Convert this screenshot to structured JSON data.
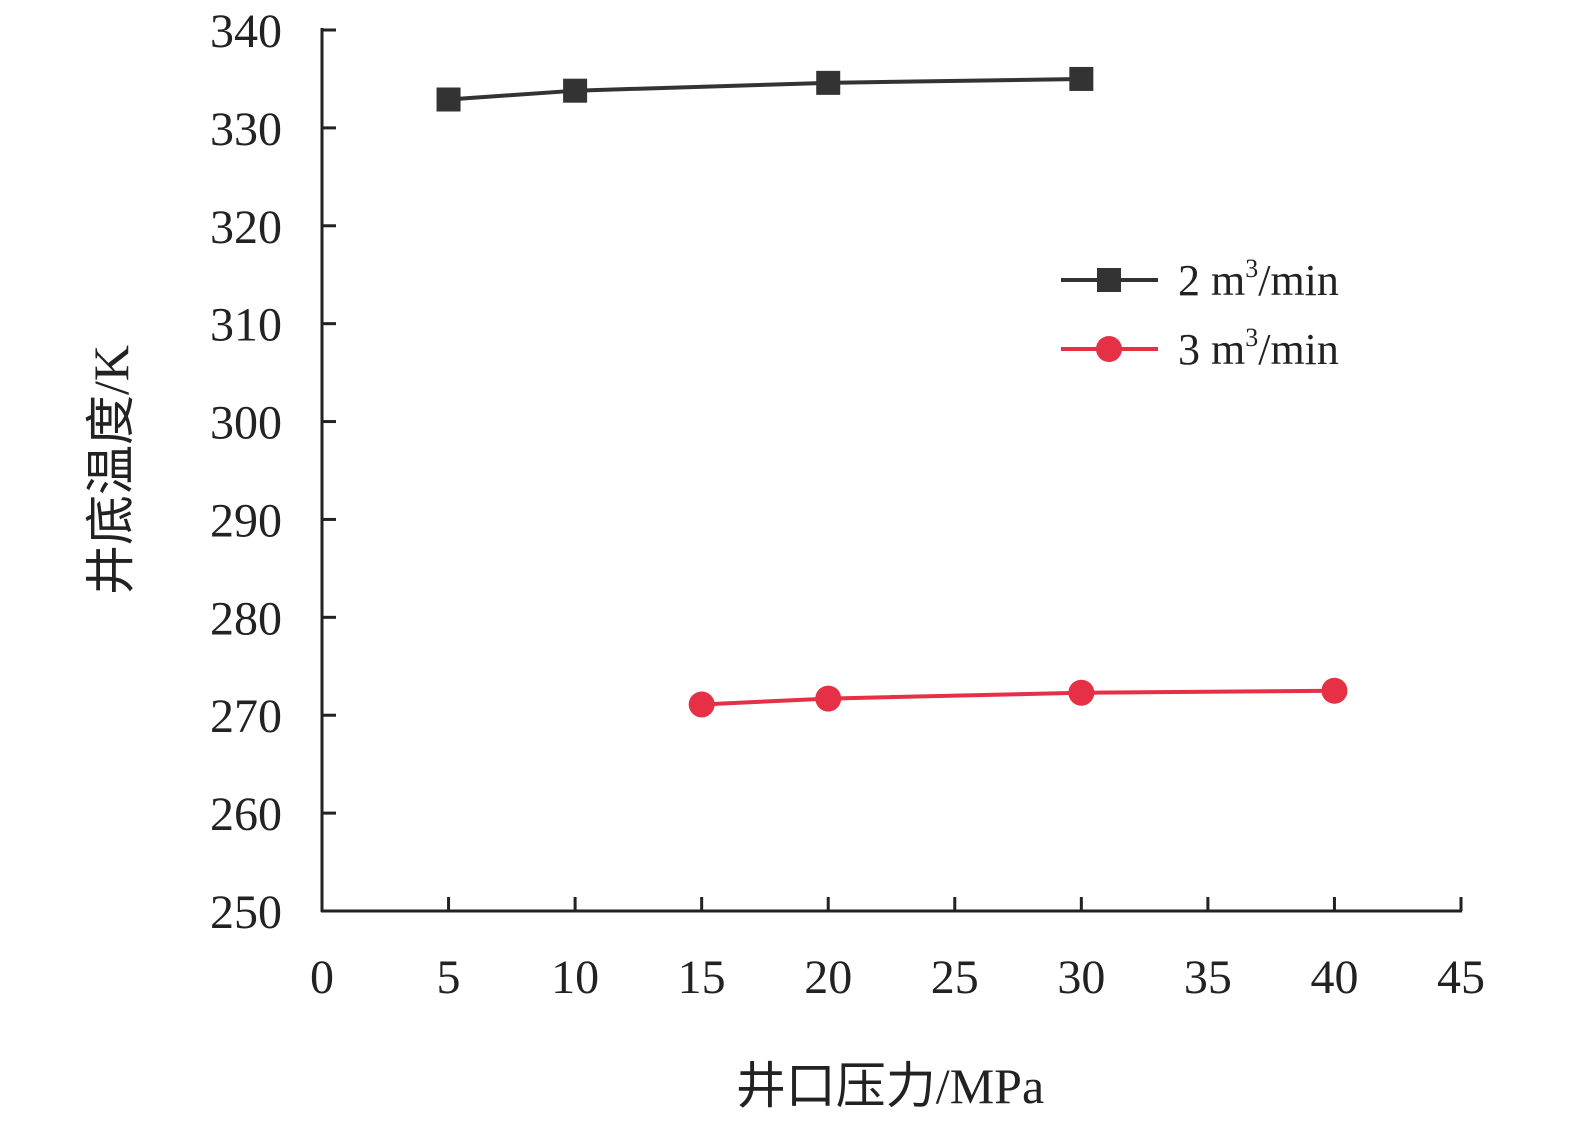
{
  "chart_data": {
    "type": "line",
    "xlabel": "井口压力/MPa",
    "ylabel": "井底温度/K",
    "xlim": [
      0,
      45
    ],
    "ylim": [
      250,
      340
    ],
    "xticks": [
      0,
      5,
      10,
      15,
      20,
      25,
      30,
      35,
      40,
      45
    ],
    "yticks": [
      250,
      260,
      270,
      280,
      290,
      300,
      310,
      320,
      330,
      340
    ],
    "grid": false,
    "legend_position": "right",
    "series": [
      {
        "name_prefix": "2 m",
        "name_sup": "3",
        "name_suffix": "/min",
        "color": "#333333",
        "marker": "square",
        "x": [
          5,
          10,
          20,
          30
        ],
        "y": [
          332.9,
          333.8,
          334.6,
          335.0
        ]
      },
      {
        "name_prefix": "3 m",
        "name_sup": "3",
        "name_suffix": "/min",
        "color": "#e53045",
        "marker": "circle",
        "x": [
          15,
          20,
          30,
          40
        ],
        "y": [
          271.1,
          271.7,
          272.3,
          272.5
        ]
      }
    ]
  }
}
